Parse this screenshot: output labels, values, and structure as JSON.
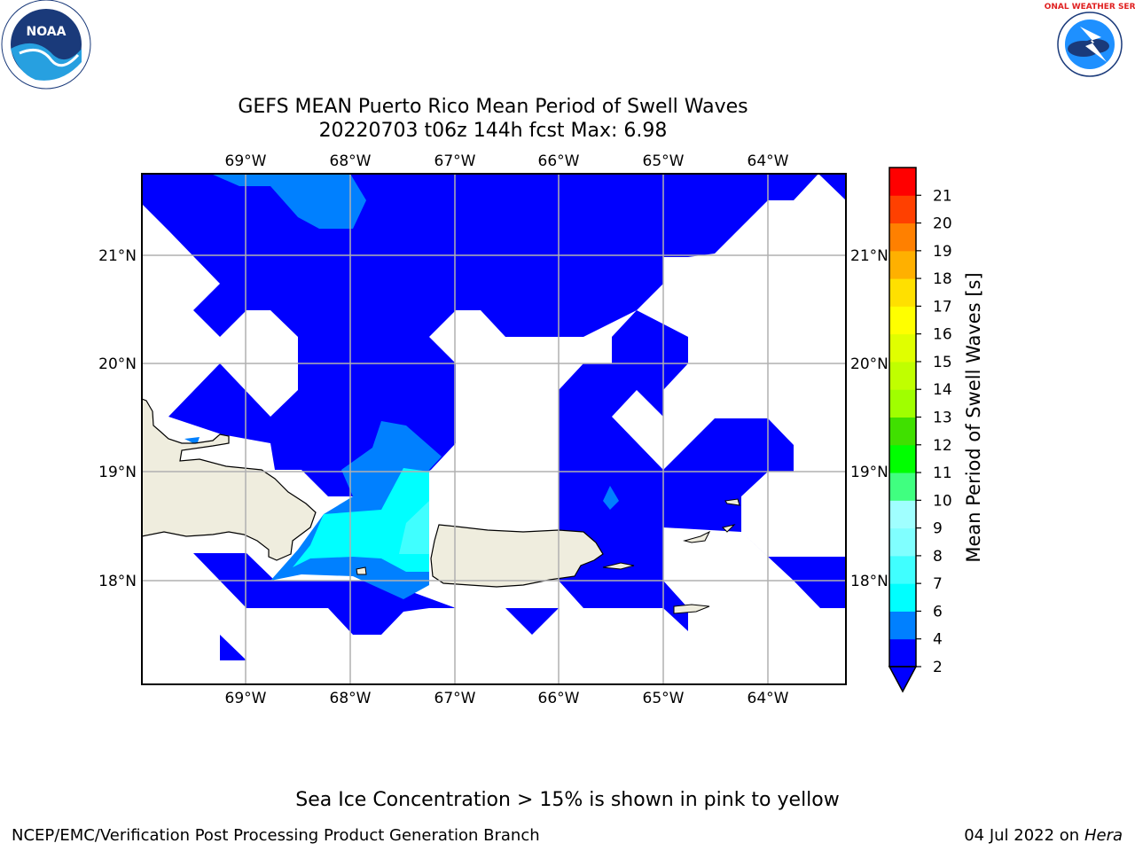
{
  "title": {
    "line1": "GEFS MEAN Puerto Rico Mean Period of Swell Waves",
    "line2": "20220703 t06z 144h fcst   Max: 6.98"
  },
  "axes": {
    "lon_labels": [
      "69°W",
      "68°W",
      "67°W",
      "66°W",
      "65°W",
      "64°W"
    ],
    "lat_labels": [
      "21°N",
      "20°N",
      "19°N",
      "18°N"
    ]
  },
  "colorbar": {
    "label": "Mean Period of Swell Waves [s]",
    "ticks": [
      "2",
      "4",
      "6",
      "7",
      "8",
      "9",
      "10",
      "11",
      "12",
      "13",
      "14",
      "15",
      "16",
      "17",
      "18",
      "19",
      "20",
      "21"
    ],
    "colors": [
      "#0000ff",
      "#0080ff",
      "#00ffff",
      "#40ffff",
      "#80ffff",
      "#a0ffff",
      "#40ff80",
      "#00ff00",
      "#40e000",
      "#a0ff00",
      "#c0ff00",
      "#e0ff00",
      "#ffff00",
      "#ffe000",
      "#ffb000",
      "#ff8000",
      "#ff4000",
      "#ff0000"
    ]
  },
  "colors": {
    "land": "#efedde",
    "level_2_4": "#0000ff",
    "level_4_6": "#0080ff",
    "level_6_7": "#00ffff",
    "level_7_8": "#40ffff",
    "grid": "#b0b0b0"
  },
  "logos": {
    "noaa_text": "NOAA",
    "nws_text": "NATIONAL WEATHER SERVICE"
  },
  "bottom_note": "Sea Ice Concentration > 15% is shown in pink to yellow",
  "footer": {
    "left": "NCEP/EMC/Verification Post Processing Product Generation Branch",
    "date": "04 Jul 2022 on ",
    "host": "Hera"
  }
}
